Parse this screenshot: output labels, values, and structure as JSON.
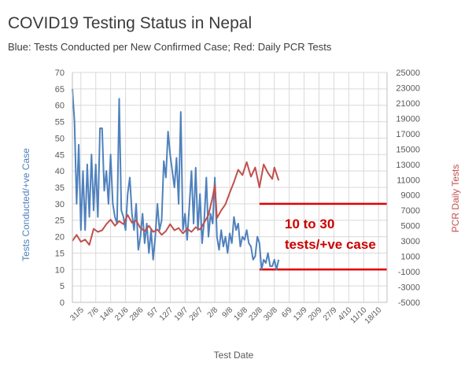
{
  "title": "COVID19 Testing Status in Nepal",
  "subtitle": "Blue: Tests Conducted per New Confirmed Case; Red: Daily PCR Tests",
  "chart_data": {
    "type": "line",
    "xlabel": "Test Date",
    "ylabel_left": "Tests Conducted/+ve Case",
    "ylabel_right": "PCR Daily Tests",
    "ylim_left": [
      0,
      70
    ],
    "ylim_right": [
      -5000,
      25000
    ],
    "yticks_left": [
      "0",
      "5",
      "10",
      "15",
      "20",
      "25",
      "30",
      "35",
      "40",
      "45",
      "50",
      "55",
      "60",
      "65",
      "70"
    ],
    "yticks_right": [
      "-5000",
      "-3000",
      "-1000",
      "1000",
      "3000",
      "5000",
      "7000",
      "9000",
      "11000",
      "13000",
      "15000",
      "17000",
      "19000",
      "21000",
      "23000",
      "25000"
    ],
    "x_range": [
      "2020-05-27",
      "2020-10-22"
    ],
    "xtick_labels": [
      "31/5",
      "7/6",
      "14/6",
      "21/6",
      "28/6",
      "5/7",
      "12/7",
      "19/7",
      "26/7",
      "2/8",
      "9/8",
      "16/8",
      "23/8",
      "30/8",
      "6/9",
      "13/9",
      "20/9",
      "27/9",
      "4/10",
      "11/10",
      "18/10"
    ],
    "xtick_dates": [
      "2020-05-31",
      "2020-06-07",
      "2020-06-14",
      "2020-06-21",
      "2020-06-28",
      "2020-07-05",
      "2020-07-12",
      "2020-07-19",
      "2020-07-26",
      "2020-08-02",
      "2020-08-09",
      "2020-08-16",
      "2020-08-23",
      "2020-08-30",
      "2020-09-06",
      "2020-09-13",
      "2020-09-20",
      "2020-09-27",
      "2020-10-04",
      "2020-10-11",
      "2020-10-18"
    ],
    "grid": true,
    "series": [
      {
        "color": "#4f81bd",
        "axis": "left",
        "points": [
          [
            "2020-05-27",
            65
          ],
          [
            "2020-05-28",
            55
          ],
          [
            "2020-05-29",
            30
          ],
          [
            "2020-05-30",
            48
          ],
          [
            "2020-05-31",
            22
          ],
          [
            "2020-06-01",
            40
          ],
          [
            "2020-06-02",
            22
          ],
          [
            "2020-06-03",
            42
          ],
          [
            "2020-06-04",
            26
          ],
          [
            "2020-06-05",
            45
          ],
          [
            "2020-06-06",
            28
          ],
          [
            "2020-06-07",
            42
          ],
          [
            "2020-06-08",
            26
          ],
          [
            "2020-06-09",
            53
          ],
          [
            "2020-06-10",
            53
          ],
          [
            "2020-06-11",
            34
          ],
          [
            "2020-06-12",
            40
          ],
          [
            "2020-06-13",
            30
          ],
          [
            "2020-06-14",
            45
          ],
          [
            "2020-06-15",
            30
          ],
          [
            "2020-06-16",
            26
          ],
          [
            "2020-06-17",
            24
          ],
          [
            "2020-06-18",
            62
          ],
          [
            "2020-06-19",
            28
          ],
          [
            "2020-06-20",
            26
          ],
          [
            "2020-06-21",
            22
          ],
          [
            "2020-06-22",
            33
          ],
          [
            "2020-06-23",
            38
          ],
          [
            "2020-06-24",
            27
          ],
          [
            "2020-06-25",
            22
          ],
          [
            "2020-06-26",
            30
          ],
          [
            "2020-06-27",
            16
          ],
          [
            "2020-06-28",
            20
          ],
          [
            "2020-06-29",
            27
          ],
          [
            "2020-06-30",
            18
          ],
          [
            "2020-07-01",
            24
          ],
          [
            "2020-07-02",
            15
          ],
          [
            "2020-07-03",
            22
          ],
          [
            "2020-07-04",
            13
          ],
          [
            "2020-07-05",
            20
          ],
          [
            "2020-07-06",
            30
          ],
          [
            "2020-07-07",
            22
          ],
          [
            "2020-07-08",
            25
          ],
          [
            "2020-07-09",
            43
          ],
          [
            "2020-07-10",
            38
          ],
          [
            "2020-07-11",
            52
          ],
          [
            "2020-07-12",
            45
          ],
          [
            "2020-07-13",
            40
          ],
          [
            "2020-07-14",
            35
          ],
          [
            "2020-07-15",
            44
          ],
          [
            "2020-07-16",
            30
          ],
          [
            "2020-07-17",
            58
          ],
          [
            "2020-07-18",
            22
          ],
          [
            "2020-07-19",
            27
          ],
          [
            "2020-07-20",
            19
          ],
          [
            "2020-07-21",
            29
          ],
          [
            "2020-07-22",
            40
          ],
          [
            "2020-07-23",
            24
          ],
          [
            "2020-07-24",
            41
          ],
          [
            "2020-07-25",
            22
          ],
          [
            "2020-07-26",
            33
          ],
          [
            "2020-07-27",
            18
          ],
          [
            "2020-07-28",
            25
          ],
          [
            "2020-07-29",
            38
          ],
          [
            "2020-07-30",
            20
          ],
          [
            "2020-07-31",
            27
          ],
          [
            "2020-08-01",
            24
          ],
          [
            "2020-08-02",
            38
          ],
          [
            "2020-08-03",
            20
          ],
          [
            "2020-08-04",
            16
          ],
          [
            "2020-08-05",
            22
          ],
          [
            "2020-08-06",
            17
          ],
          [
            "2020-08-07",
            20
          ],
          [
            "2020-08-08",
            15
          ],
          [
            "2020-08-09",
            21
          ],
          [
            "2020-08-10",
            18
          ],
          [
            "2020-08-11",
            26
          ],
          [
            "2020-08-12",
            22
          ],
          [
            "2020-08-13",
            24
          ],
          [
            "2020-08-14",
            17
          ],
          [
            "2020-08-15",
            20
          ],
          [
            "2020-08-16",
            19
          ],
          [
            "2020-08-17",
            22
          ],
          [
            "2020-08-18",
            18
          ],
          [
            "2020-08-19",
            17
          ],
          [
            "2020-08-20",
            13
          ],
          [
            "2020-08-21",
            14
          ],
          [
            "2020-08-22",
            20
          ],
          [
            "2020-08-23",
            18
          ],
          [
            "2020-08-24",
            10
          ],
          [
            "2020-08-25",
            13
          ],
          [
            "2020-08-26",
            12
          ],
          [
            "2020-08-27",
            15
          ],
          [
            "2020-08-28",
            11
          ],
          [
            "2020-08-29",
            11
          ],
          [
            "2020-08-30",
            13
          ],
          [
            "2020-08-31",
            10
          ],
          [
            "2020-09-01",
            13
          ]
        ]
      },
      {
        "color": "#c0504d",
        "axis": "right",
        "points": [
          [
            "2020-05-27",
            3000
          ],
          [
            "2020-05-29",
            3800
          ],
          [
            "2020-05-31",
            2900
          ],
          [
            "2020-06-02",
            3200
          ],
          [
            "2020-06-04",
            2500
          ],
          [
            "2020-06-06",
            4600
          ],
          [
            "2020-06-08",
            4200
          ],
          [
            "2020-06-10",
            4400
          ],
          [
            "2020-06-12",
            5200
          ],
          [
            "2020-06-14",
            5800
          ],
          [
            "2020-06-16",
            5000
          ],
          [
            "2020-06-18",
            5600
          ],
          [
            "2020-06-20",
            5200
          ],
          [
            "2020-06-22",
            6400
          ],
          [
            "2020-06-24",
            5400
          ],
          [
            "2020-06-26",
            5700
          ],
          [
            "2020-06-28",
            4700
          ],
          [
            "2020-06-30",
            4300
          ],
          [
            "2020-07-02",
            5000
          ],
          [
            "2020-07-04",
            4200
          ],
          [
            "2020-07-06",
            4500
          ],
          [
            "2020-07-08",
            3800
          ],
          [
            "2020-07-10",
            4300
          ],
          [
            "2020-07-12",
            5200
          ],
          [
            "2020-07-14",
            4400
          ],
          [
            "2020-07-16",
            4700
          ],
          [
            "2020-07-18",
            4000
          ],
          [
            "2020-07-20",
            4600
          ],
          [
            "2020-07-22",
            4200
          ],
          [
            "2020-07-24",
            4800
          ],
          [
            "2020-07-26",
            4500
          ],
          [
            "2020-07-28",
            5400
          ],
          [
            "2020-07-30",
            6400
          ],
          [
            "2020-08-01",
            8800
          ],
          [
            "2020-08-02",
            10300
          ],
          [
            "2020-08-03",
            6000
          ],
          [
            "2020-08-05",
            7000
          ],
          [
            "2020-08-07",
            7800
          ],
          [
            "2020-08-09",
            9300
          ],
          [
            "2020-08-11",
            10700
          ],
          [
            "2020-08-13",
            12300
          ],
          [
            "2020-08-15",
            11600
          ],
          [
            "2020-08-17",
            13300
          ],
          [
            "2020-08-19",
            11400
          ],
          [
            "2020-08-21",
            12600
          ],
          [
            "2020-08-23",
            10000
          ],
          [
            "2020-08-25",
            13000
          ],
          [
            "2020-08-27",
            11900
          ],
          [
            "2020-08-29",
            11100
          ],
          [
            "2020-08-30",
            12600
          ],
          [
            "2020-09-01",
            10900
          ]
        ]
      }
    ],
    "reference_lines_left": [
      30,
      10
    ],
    "reference_start_date": "2020-08-23",
    "reference_color": "#e00000",
    "annotations": [
      "10 to 30",
      "tests/+ve case"
    ]
  }
}
